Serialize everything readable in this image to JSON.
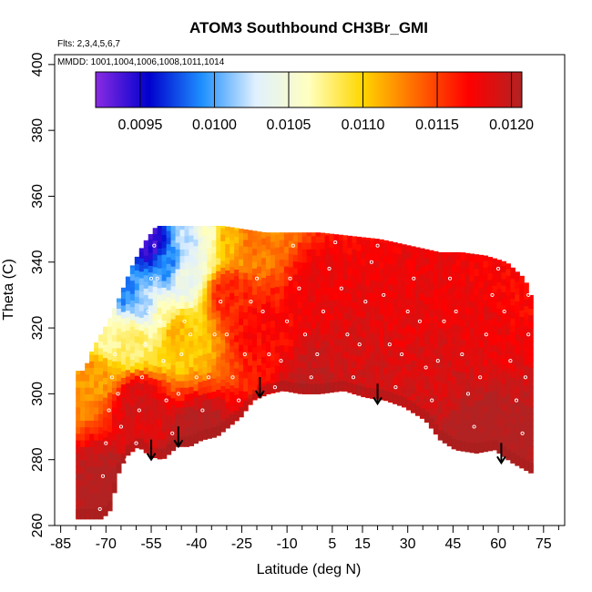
{
  "chart_data": {
    "type": "heatmap",
    "title": "ATOM3 Southbound CH3Br_GMI",
    "annotation_flights": "Flts: 2,3,4,5,6,7",
    "annotation_dates": "MMDD: 1001,1004,1006,1008,1011,1014",
    "xlabel": "Latitude (deg N)",
    "ylabel": "Theta (C)",
    "xlim": [
      -87,
      82
    ],
    "ylim": [
      260,
      403
    ],
    "x_ticks": [
      -85,
      -70,
      -55,
      -40,
      -25,
      -10,
      5,
      15,
      30,
      45,
      60,
      75
    ],
    "x_minor_ticks": [
      -80,
      -75,
      -65,
      -60,
      -50,
      -45,
      -35,
      -30,
      -20,
      -15,
      -5,
      0,
      10,
      20,
      25,
      35,
      40,
      50,
      55,
      65,
      70,
      80
    ],
    "y_ticks": [
      260,
      280,
      300,
      320,
      340,
      360,
      380,
      400
    ],
    "colorbar": {
      "min": 0.0092,
      "max": 0.01207,
      "ticks": [
        0.0095,
        0.01,
        0.0105,
        0.011,
        0.0115,
        0.012
      ],
      "tick_labels": [
        "0.0095",
        "0.0100",
        "0.0105",
        "0.0110",
        "0.0115",
        "0.0120"
      ],
      "colors": [
        "#8a2be2",
        "#0000cd",
        "#1e90ff",
        "#e0f0ff",
        "#ffffc0",
        "#ffd700",
        "#ff6a00",
        "#ff0000",
        "#b22222"
      ]
    },
    "domain_bottom": [
      [
        -72,
        262
      ],
      [
        -69,
        265
      ],
      [
        -67,
        275
      ],
      [
        -64,
        281
      ],
      [
        -60,
        284
      ],
      [
        -56,
        281
      ],
      [
        -52,
        280
      ],
      [
        -47,
        284
      ],
      [
        -43,
        284
      ],
      [
        -39,
        286
      ],
      [
        -34,
        287
      ],
      [
        -30,
        290
      ],
      [
        -26,
        293
      ],
      [
        -22,
        298
      ],
      [
        -17,
        300
      ],
      [
        -12,
        301
      ],
      [
        -6,
        300
      ],
      [
        0,
        300
      ],
      [
        8,
        301
      ],
      [
        15,
        299
      ],
      [
        22,
        298
      ],
      [
        28,
        296
      ],
      [
        35,
        292
      ],
      [
        40,
        286
      ],
      [
        45,
        283
      ],
      [
        52,
        282
      ],
      [
        58,
        283
      ],
      [
        64,
        279
      ],
      [
        70,
        276
      ]
    ],
    "domain_top": [
      [
        -78,
        307
      ],
      [
        -75,
        314
      ],
      [
        -70,
        322
      ],
      [
        -66,
        330
      ],
      [
        -62,
        339
      ],
      [
        -58,
        346
      ],
      [
        -54,
        351
      ],
      [
        -47,
        351
      ],
      [
        -40,
        351
      ],
      [
        -32,
        351
      ],
      [
        -25,
        350
      ],
      [
        -18,
        349
      ],
      [
        -10,
        349
      ],
      [
        0,
        349
      ],
      [
        10,
        348
      ],
      [
        20,
        347
      ],
      [
        30,
        345
      ],
      [
        40,
        343
      ],
      [
        47,
        343
      ],
      [
        55,
        342
      ],
      [
        62,
        340
      ],
      [
        68,
        335
      ],
      [
        70,
        330
      ]
    ],
    "domain_right": [
      [
        70,
        330
      ],
      [
        70,
        318
      ],
      [
        71,
        305
      ],
      [
        71,
        276
      ]
    ],
    "domain_left": [
      [
        -78,
        307
      ],
      [
        -79,
        290
      ],
      [
        -80,
        282
      ],
      [
        -77,
        270
      ],
      [
        -72,
        262
      ]
    ],
    "value_anchors": [
      {
        "lat": -56,
        "theta": 345,
        "value": 0.0094
      },
      {
        "lat": -50,
        "theta": 338,
        "value": 0.0099
      },
      {
        "lat": -45,
        "theta": 335,
        "value": 0.0104
      },
      {
        "lat": -42,
        "theta": 346,
        "value": 0.0102
      },
      {
        "lat": -38,
        "theta": 346,
        "value": 0.0106
      },
      {
        "lat": -58,
        "theta": 325,
        "value": 0.0102
      },
      {
        "lat": -64,
        "theta": 330,
        "value": 0.0099
      },
      {
        "lat": -70,
        "theta": 318,
        "value": 0.0107
      },
      {
        "lat": -62,
        "theta": 316,
        "value": 0.0108
      },
      {
        "lat": -52,
        "theta": 322,
        "value": 0.0107
      },
      {
        "lat": -48,
        "theta": 318,
        "value": 0.0111
      },
      {
        "lat": -30,
        "theta": 346,
        "value": 0.0111
      },
      {
        "lat": -22,
        "theta": 346,
        "value": 0.0113
      },
      {
        "lat": -30,
        "theta": 330,
        "value": 0.0116
      },
      {
        "lat": -76,
        "theta": 305,
        "value": 0.0112
      },
      {
        "lat": -20,
        "theta": 320,
        "value": 0.0117
      },
      {
        "lat": -60,
        "theta": 296,
        "value": 0.0119
      },
      {
        "lat": 0,
        "theta": 330,
        "value": 0.0118
      },
      {
        "lat": 30,
        "theta": 325,
        "value": 0.0118
      },
      {
        "lat": 55,
        "theta": 320,
        "value": 0.0118
      },
      {
        "lat": 65,
        "theta": 330,
        "value": 0.0117
      },
      {
        "lat": 10,
        "theta": 308,
        "value": 0.0119
      },
      {
        "lat": 40,
        "theta": 305,
        "value": 0.0119
      },
      {
        "lat": -70,
        "theta": 270,
        "value": 0.0121
      },
      {
        "lat": -40,
        "theta": 285,
        "value": 0.0121
      },
      {
        "lat": 50,
        "theta": 286,
        "value": 0.0121
      },
      {
        "lat": 68,
        "theta": 280,
        "value": 0.0121
      },
      {
        "lat": 0,
        "theta": 302,
        "value": 0.012
      }
    ],
    "tropopause_arrows": [
      {
        "lat": -55,
        "theta": 280
      },
      {
        "lat": -46,
        "theta": 284
      },
      {
        "lat": -19,
        "theta": 299
      },
      {
        "lat": 20,
        "theta": 297
      },
      {
        "lat": 61,
        "theta": 279
      }
    ],
    "flight_track_points": [
      {
        "lat": -72,
        "theta": 265
      },
      {
        "lat": -71,
        "theta": 275
      },
      {
        "lat": -70,
        "theta": 285
      },
      {
        "lat": -69,
        "theta": 295
      },
      {
        "lat": -68,
        "theta": 305
      },
      {
        "lat": -67,
        "theta": 312
      },
      {
        "lat": -66,
        "theta": 300
      },
      {
        "lat": -65,
        "theta": 290
      },
      {
        "lat": -63,
        "theta": 280
      },
      {
        "lat": -62,
        "theta": 270
      },
      {
        "lat": -60,
        "theta": 285
      },
      {
        "lat": -59,
        "theta": 295
      },
      {
        "lat": -58,
        "theta": 305
      },
      {
        "lat": -57,
        "theta": 315
      },
      {
        "lat": -56,
        "theta": 325
      },
      {
        "lat": -55,
        "theta": 335
      },
      {
        "lat": -54,
        "theta": 345
      },
      {
        "lat": -53,
        "theta": 335
      },
      {
        "lat": -52,
        "theta": 322
      },
      {
        "lat": -51,
        "theta": 310
      },
      {
        "lat": -50,
        "theta": 298
      },
      {
        "lat": -48,
        "theta": 288
      },
      {
        "lat": -46,
        "theta": 300
      },
      {
        "lat": -45,
        "theta": 312
      },
      {
        "lat": -44,
        "theta": 322
      },
      {
        "lat": -42,
        "theta": 318
      },
      {
        "lat": -40,
        "theta": 305
      },
      {
        "lat": -38,
        "theta": 295
      },
      {
        "lat": -36,
        "theta": 305
      },
      {
        "lat": -34,
        "theta": 318
      },
      {
        "lat": -32,
        "theta": 328
      },
      {
        "lat": -30,
        "theta": 318
      },
      {
        "lat": -28,
        "theta": 305
      },
      {
        "lat": -26,
        "theta": 298
      },
      {
        "lat": -24,
        "theta": 312
      },
      {
        "lat": -22,
        "theta": 328
      },
      {
        "lat": -20,
        "theta": 335
      },
      {
        "lat": -18,
        "theta": 325
      },
      {
        "lat": -16,
        "theta": 312
      },
      {
        "lat": -14,
        "theta": 302
      },
      {
        "lat": -12,
        "theta": 310
      },
      {
        "lat": -10,
        "theta": 322
      },
      {
        "lat": -9,
        "theta": 335
      },
      {
        "lat": -8,
        "theta": 345
      },
      {
        "lat": -6,
        "theta": 332
      },
      {
        "lat": -4,
        "theta": 318
      },
      {
        "lat": -2,
        "theta": 305
      },
      {
        "lat": 0,
        "theta": 312
      },
      {
        "lat": 2,
        "theta": 325
      },
      {
        "lat": 4,
        "theta": 338
      },
      {
        "lat": 6,
        "theta": 346
      },
      {
        "lat": 8,
        "theta": 332
      },
      {
        "lat": 10,
        "theta": 318
      },
      {
        "lat": 12,
        "theta": 305
      },
      {
        "lat": 14,
        "theta": 315
      },
      {
        "lat": 16,
        "theta": 328
      },
      {
        "lat": 18,
        "theta": 340
      },
      {
        "lat": 20,
        "theta": 345
      },
      {
        "lat": 22,
        "theta": 330
      },
      {
        "lat": 24,
        "theta": 315
      },
      {
        "lat": 26,
        "theta": 302
      },
      {
        "lat": 28,
        "theta": 312
      },
      {
        "lat": 30,
        "theta": 325
      },
      {
        "lat": 32,
        "theta": 335
      },
      {
        "lat": 34,
        "theta": 322
      },
      {
        "lat": 36,
        "theta": 308
      },
      {
        "lat": 38,
        "theta": 298
      },
      {
        "lat": 40,
        "theta": 310
      },
      {
        "lat": 42,
        "theta": 322
      },
      {
        "lat": 44,
        "theta": 335
      },
      {
        "lat": 46,
        "theta": 325
      },
      {
        "lat": 48,
        "theta": 312
      },
      {
        "lat": 50,
        "theta": 300
      },
      {
        "lat": 52,
        "theta": 290
      },
      {
        "lat": 54,
        "theta": 305
      },
      {
        "lat": 56,
        "theta": 318
      },
      {
        "lat": 58,
        "theta": 330
      },
      {
        "lat": 60,
        "theta": 338
      },
      {
        "lat": 62,
        "theta": 325
      },
      {
        "lat": 64,
        "theta": 310
      },
      {
        "lat": 66,
        "theta": 298
      },
      {
        "lat": 68,
        "theta": 288
      },
      {
        "lat": 69,
        "theta": 305
      },
      {
        "lat": 70,
        "theta": 318
      },
      {
        "lat": 70,
        "theta": 330
      }
    ]
  }
}
